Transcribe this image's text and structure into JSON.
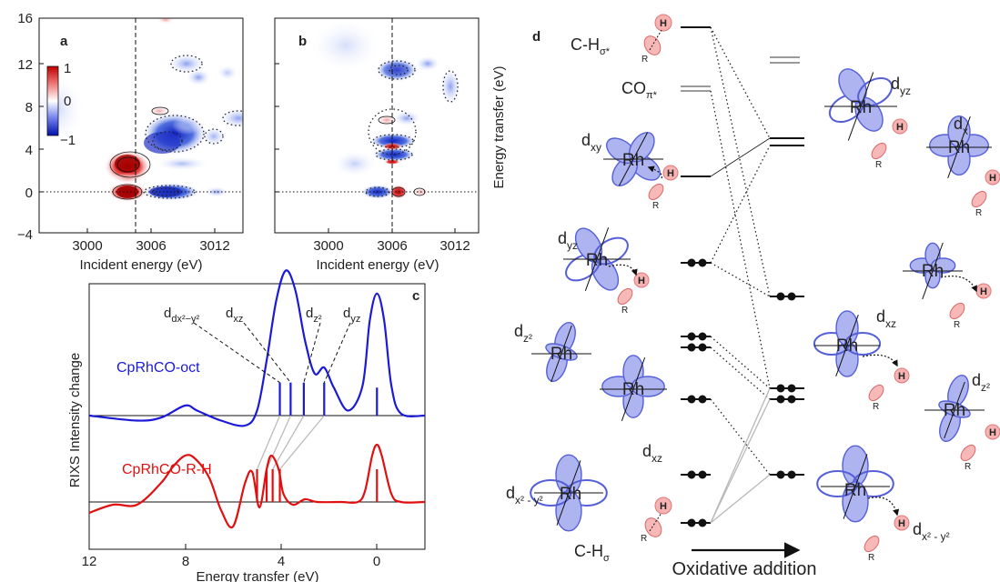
{
  "panels": {
    "a": "a",
    "b": "b",
    "c": "c",
    "d": "d"
  },
  "rixs_maps": {
    "y_ticks": [
      "16",
      "12",
      "8",
      "4",
      "0",
      "−4"
    ],
    "x_ticks": [
      "3000",
      "3006",
      "3012"
    ],
    "x_label": "Incident energy (eV)",
    "y_label": "Energy transfer (eV)",
    "colorbar_ticks": [
      "1",
      "0",
      "−1"
    ],
    "colors": {
      "positive": "#d40000",
      "zero": "#ffffff",
      "negative": "#0018c8"
    }
  },
  "chart_data": {
    "type": "line",
    "xlabel": "Energy transfer (eV)",
    "ylabel": "RIXS Intensity change",
    "x_ticks": [
      "12",
      "8",
      "4",
      "0"
    ],
    "xlim": [
      12,
      -2
    ],
    "series": [
      {
        "name": "CpRhCO-oct",
        "color": "#1a1ad8",
        "x": [
          12,
          10,
          9,
          8,
          7.5,
          6.5,
          5.5,
          5,
          4.6,
          4.2,
          3.8,
          3.4,
          3.0,
          2.6,
          2.2,
          1.8,
          1.2,
          0.6,
          0.3,
          0,
          -0.3,
          -0.6,
          -1,
          -2
        ],
        "y": [
          0.0,
          -0.05,
          -0.02,
          0.1,
          0.05,
          -0.05,
          -0.1,
          0.05,
          0.55,
          1.15,
          1.45,
          1.25,
          0.75,
          0.42,
          0.48,
          0.28,
          0.05,
          0.3,
          0.95,
          1.22,
          0.95,
          0.3,
          0.02,
          0.0
        ],
        "sticks": [
          {
            "x": 4.05,
            "h": 0.33
          },
          {
            "x": 3.6,
            "h": 0.33
          },
          {
            "x": 3.05,
            "h": 0.33
          },
          {
            "x": 2.2,
            "h": 0.33
          },
          {
            "x": 0,
            "h": 0.28
          }
        ]
      },
      {
        "name": "CpRhCO-R-H",
        "color": "#e01010",
        "x": [
          12,
          11,
          10,
          9,
          8.5,
          8,
          7.6,
          7,
          6.5,
          6.0,
          5.5,
          5.2,
          4.9,
          4.6,
          4.4,
          4.1,
          3.9,
          3.5,
          3.0,
          2.5,
          1.5,
          0.8,
          0.5,
          0.2,
          0,
          -0.2,
          -0.6,
          -1,
          -2
        ],
        "y": [
          -0.2,
          -0.05,
          -0.05,
          0.35,
          0.65,
          0.85,
          0.8,
          0.45,
          -0.15,
          -0.45,
          0.35,
          0.55,
          -0.1,
          0.6,
          0.85,
          0.6,
          0.15,
          -0.05,
          0.05,
          0.0,
          0.0,
          0.0,
          0.2,
          0.85,
          1.05,
          0.85,
          0.15,
          0.0,
          0.0
        ],
        "sticks": [
          {
            "x": 5.0,
            "h": 0.6
          },
          {
            "x": 4.6,
            "h": 0.6
          },
          {
            "x": 4.35,
            "h": 0.6
          },
          {
            "x": 4.05,
            "h": 0.6
          },
          {
            "x": 0,
            "h": 0.6
          }
        ]
      }
    ],
    "annotations": [
      "dx²−y²",
      "dxz",
      "dz²",
      "dyz"
    ]
  },
  "diagram": {
    "ch_sigma_star": "C-H",
    "ch_sigma_star_sub": "σ*",
    "co_pi_star": "CO",
    "co_pi_star_sub": "π*",
    "rh": "Rh",
    "h": "H",
    "r": "R",
    "d": "d",
    "sub_xy": "xy",
    "sub_yz": "yz",
    "sub_z2": "z²",
    "sub_xz": "xz",
    "sub_x2y2": "x² - y²",
    "sub_x": "x",
    "ch_sigma": "C-H",
    "ch_sigma_sub": "σ",
    "oxidative_addition": "Oxidative addition"
  }
}
